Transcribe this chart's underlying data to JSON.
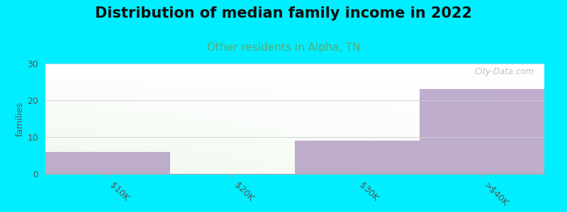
{
  "title": "Distribution of median family income in 2022",
  "subtitle": "Other residents in Alpha, TN",
  "categories": [
    "$10K",
    "$20K",
    "$30K",
    ">$40K"
  ],
  "values": [
    6,
    0,
    9,
    23
  ],
  "bar_color": "#b59fc5",
  "bg_color": "#00eeff",
  "ylabel": "families",
  "ylim": [
    0,
    30
  ],
  "yticks": [
    0,
    10,
    20,
    30
  ],
  "watermark": "City-Data.com",
  "title_fontsize": 15,
  "subtitle_fontsize": 11,
  "subtitle_color": "#5aaa77",
  "title_color": "#111111",
  "tick_label_color": "#555555",
  "gradient_left": "#c8e8c0",
  "gradient_right": "#f5f8f5"
}
